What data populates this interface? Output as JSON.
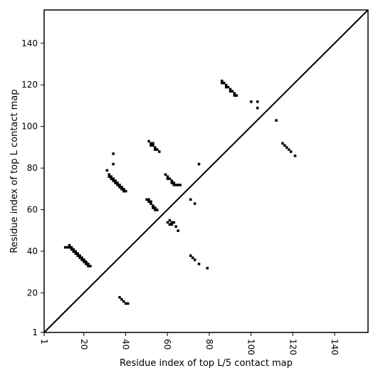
{
  "chart_data": {
    "type": "heatmap",
    "title": "",
    "xlabel": "Residue index of top L/5 contact map",
    "ylabel": "Residue index of top L contact map",
    "xlim": [
      1,
      156
    ],
    "ylim": [
      1,
      156
    ],
    "xticks": [
      1,
      20,
      40,
      60,
      80,
      100,
      120,
      140
    ],
    "yticks": [
      1,
      20,
      40,
      60,
      80,
      100,
      120,
      140
    ],
    "diagonal_line": true,
    "grid": false,
    "lower_triangle_contacts": [
      [
        11,
        42
      ],
      [
        12,
        42
      ],
      [
        13,
        42
      ],
      [
        13,
        43
      ],
      [
        14,
        41
      ],
      [
        14,
        42
      ],
      [
        15,
        40
      ],
      [
        15,
        41
      ],
      [
        16,
        39
      ],
      [
        16,
        40
      ],
      [
        17,
        38
      ],
      [
        17,
        39
      ],
      [
        18,
        37
      ],
      [
        18,
        38
      ],
      [
        19,
        36
      ],
      [
        19,
        37
      ],
      [
        20,
        35
      ],
      [
        20,
        36
      ],
      [
        21,
        34
      ],
      [
        21,
        35
      ],
      [
        22,
        33
      ],
      [
        22,
        34
      ],
      [
        23,
        33
      ],
      [
        31,
        79
      ],
      [
        32,
        76
      ],
      [
        32,
        77
      ],
      [
        33,
        75
      ],
      [
        33,
        76
      ],
      [
        34,
        74
      ],
      [
        34,
        75
      ],
      [
        35,
        73
      ],
      [
        35,
        74
      ],
      [
        36,
        72
      ],
      [
        36,
        73
      ],
      [
        37,
        71
      ],
      [
        37,
        72
      ],
      [
        38,
        70
      ],
      [
        38,
        71
      ],
      [
        39,
        69
      ],
      [
        39,
        70
      ],
      [
        40,
        69
      ],
      [
        34,
        82
      ],
      [
        34,
        87
      ],
      [
        51,
        93
      ],
      [
        52,
        92
      ],
      [
        53,
        91
      ],
      [
        54,
        90
      ],
      [
        55,
        89
      ],
      [
        56,
        88
      ],
      [
        52,
        91
      ],
      [
        53,
        92
      ],
      [
        54,
        89
      ],
      [
        50,
        65
      ],
      [
        51,
        64
      ],
      [
        52,
        63
      ],
      [
        53,
        62
      ],
      [
        54,
        61
      ],
      [
        55,
        60
      ],
      [
        51,
        65
      ],
      [
        52,
        64
      ],
      [
        53,
        61
      ],
      [
        54,
        60
      ],
      [
        59,
        77
      ],
      [
        60,
        76
      ],
      [
        61,
        75
      ],
      [
        62,
        74
      ],
      [
        63,
        73
      ],
      [
        64,
        72
      ],
      [
        65,
        72
      ],
      [
        66,
        72
      ],
      [
        60,
        75
      ],
      [
        62,
        73
      ],
      [
        63,
        72
      ],
      [
        60,
        54
      ],
      [
        61,
        53
      ],
      [
        62,
        53
      ],
      [
        63,
        54
      ],
      [
        64,
        52
      ],
      [
        65,
        50
      ],
      [
        61,
        55
      ],
      [
        62,
        54
      ],
      [
        71,
        38
      ],
      [
        72,
        37
      ],
      [
        73,
        36
      ],
      [
        75,
        34
      ],
      [
        79,
        32
      ],
      [
        71,
        65
      ],
      [
        73,
        63
      ],
      [
        75,
        82
      ],
      [
        86,
        122
      ],
      [
        87,
        121
      ],
      [
        88,
        120
      ],
      [
        89,
        119
      ],
      [
        90,
        118
      ],
      [
        91,
        117
      ],
      [
        92,
        116
      ],
      [
        93,
        115
      ],
      [
        86,
        121
      ],
      [
        88,
        119
      ],
      [
        90,
        117
      ],
      [
        92,
        115
      ],
      [
        100,
        112
      ],
      [
        103,
        112
      ],
      [
        103,
        109
      ],
      [
        112,
        103
      ],
      [
        115,
        92
      ],
      [
        116,
        91
      ],
      [
        117,
        90
      ],
      [
        118,
        89
      ],
      [
        119,
        88
      ],
      [
        121,
        86
      ],
      [
        37,
        18
      ],
      [
        38,
        17
      ],
      [
        39,
        16
      ],
      [
        40,
        15
      ],
      [
        41,
        15
      ]
    ]
  }
}
